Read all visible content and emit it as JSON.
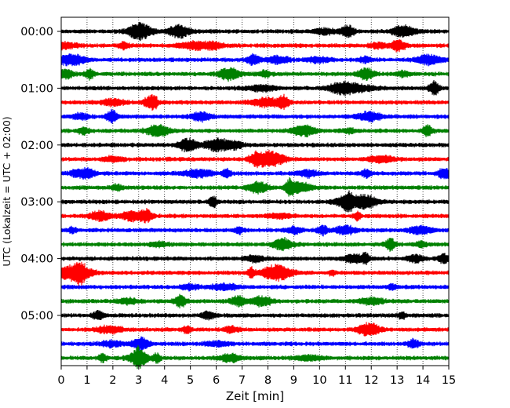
{
  "chart_data": {
    "type": "line",
    "title": "",
    "xlabel": "Zeit  [min]",
    "ylabel": "UTC (Lokalzeit = UTC + 02:00)",
    "xlim": [
      0,
      15
    ],
    "x_ticks": [
      "0",
      "1",
      "2",
      "3",
      "4",
      "5",
      "6",
      "7",
      "8",
      "9",
      "10",
      "11",
      "12",
      "13",
      "14",
      "15"
    ],
    "y_ticks": [
      "00:00",
      "01:00",
      "02:00",
      "03:00",
      "04:00",
      "05:00"
    ],
    "vertical_grid": "dotted",
    "trace_colors": [
      "#000000",
      "#ff0000",
      "#0000ff",
      "#008000"
    ],
    "traces": [
      {
        "start": "00:00",
        "color": "#000000"
      },
      {
        "start": "00:15",
        "color": "#ff0000"
      },
      {
        "start": "00:30",
        "color": "#0000ff"
      },
      {
        "start": "00:45",
        "color": "#008000"
      },
      {
        "start": "01:00",
        "color": "#000000"
      },
      {
        "start": "01:15",
        "color": "#ff0000"
      },
      {
        "start": "01:30",
        "color": "#0000ff"
      },
      {
        "start": "01:45",
        "color": "#008000"
      },
      {
        "start": "02:00",
        "color": "#000000"
      },
      {
        "start": "02:15",
        "color": "#ff0000"
      },
      {
        "start": "02:30",
        "color": "#0000ff"
      },
      {
        "start": "02:45",
        "color": "#008000"
      },
      {
        "start": "03:00",
        "color": "#000000"
      },
      {
        "start": "03:15",
        "color": "#ff0000"
      },
      {
        "start": "03:30",
        "color": "#0000ff"
      },
      {
        "start": "03:45",
        "color": "#008000"
      },
      {
        "start": "04:00",
        "color": "#000000"
      },
      {
        "start": "04:15",
        "color": "#ff0000"
      },
      {
        "start": "04:30",
        "color": "#0000ff"
      },
      {
        "start": "04:45",
        "color": "#008000"
      },
      {
        "start": "05:00",
        "color": "#000000"
      },
      {
        "start": "05:15",
        "color": "#ff0000"
      },
      {
        "start": "05:30",
        "color": "#0000ff"
      },
      {
        "start": "05:45",
        "color": "#008000"
      }
    ]
  }
}
